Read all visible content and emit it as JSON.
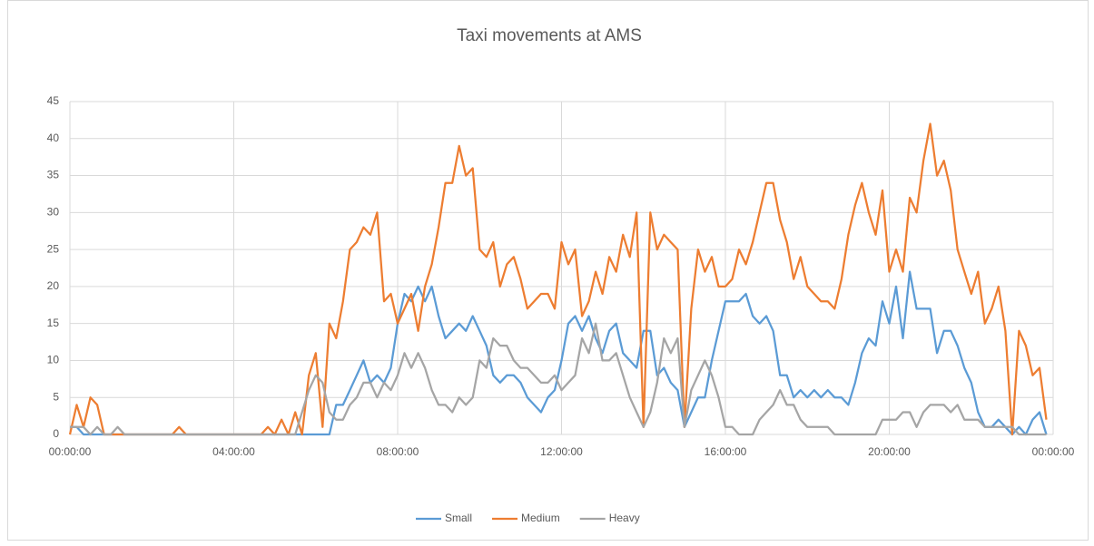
{
  "chart_data": {
    "type": "line",
    "title": "Taxi movements at AMS",
    "x": [
      0,
      10,
      20,
      30,
      40,
      50,
      60,
      70,
      80,
      90,
      100,
      110,
      120,
      130,
      140,
      150,
      160,
      170,
      180,
      190,
      200,
      210,
      220,
      230,
      240,
      250,
      260,
      270,
      280,
      290,
      300,
      310,
      320,
      330,
      340,
      350,
      360,
      370,
      380,
      390,
      400,
      410,
      420,
      430,
      440,
      450,
      460,
      470,
      480,
      490,
      500,
      510,
      520,
      530,
      540,
      550,
      560,
      570,
      580,
      590,
      600,
      610,
      620,
      630,
      640,
      650,
      660,
      670,
      680,
      690,
      700,
      710,
      720,
      730,
      740,
      750,
      760,
      770,
      780,
      790,
      800,
      810,
      820,
      830,
      840,
      850,
      860,
      870,
      880,
      890,
      900,
      910,
      920,
      930,
      940,
      950,
      960,
      970,
      980,
      990,
      1000,
      1010,
      1020,
      1030,
      1040,
      1050,
      1060,
      1070,
      1080,
      1090,
      1100,
      1110,
      1120,
      1130,
      1140,
      1150,
      1160,
      1170,
      1180,
      1190,
      1200,
      1210,
      1220,
      1230,
      1240,
      1250,
      1260,
      1270,
      1280,
      1290,
      1300,
      1310,
      1320,
      1330,
      1340,
      1350,
      1360,
      1370,
      1380,
      1390,
      1400,
      1410,
      1420,
      1430
    ],
    "series": [
      {
        "name": "Small",
        "color": "#5b9bd5",
        "values": [
          1,
          1,
          0,
          0,
          0,
          0,
          0,
          0,
          0,
          0,
          0,
          0,
          0,
          0,
          0,
          0,
          0,
          0,
          0,
          0,
          0,
          0,
          0,
          0,
          0,
          0,
          0,
          0,
          0,
          0,
          0,
          0,
          0,
          0,
          0,
          0,
          0,
          0,
          0,
          4,
          4,
          6,
          8,
          10,
          7,
          8,
          7,
          9,
          15,
          19,
          18,
          20,
          18,
          20,
          16,
          13,
          14,
          15,
          14,
          16,
          14,
          12,
          8,
          7,
          8,
          8,
          7,
          5,
          4,
          3,
          5,
          6,
          10,
          15,
          16,
          14,
          16,
          13,
          11,
          14,
          15,
          11,
          10,
          9,
          14,
          14,
          8,
          9,
          7,
          6,
          1,
          3,
          5,
          5,
          10,
          14,
          18,
          18,
          18,
          19,
          16,
          15,
          16,
          14,
          8,
          8,
          5,
          6,
          5,
          6,
          5,
          6,
          5,
          5,
          4,
          7,
          11,
          13,
          12,
          18,
          15,
          20,
          13,
          22,
          17,
          17,
          17,
          11,
          14,
          14,
          12,
          9,
          7,
          3,
          1,
          1,
          2,
          1,
          0,
          1,
          0,
          2,
          3,
          0
        ]
      },
      {
        "name": "Medium",
        "color": "#ed7d31",
        "values": [
          0,
          4,
          1,
          5,
          4,
          0,
          0,
          0,
          0,
          0,
          0,
          0,
          0,
          0,
          0,
          0,
          1,
          0,
          0,
          0,
          0,
          0,
          0,
          0,
          0,
          0,
          0,
          0,
          0,
          1,
          0,
          2,
          0,
          3,
          0,
          8,
          11,
          1,
          15,
          13,
          18,
          25,
          26,
          28,
          27,
          30,
          18,
          19,
          15,
          17,
          19,
          14,
          20,
          23,
          28,
          34,
          34,
          39,
          35,
          36,
          25,
          24,
          26,
          20,
          23,
          24,
          21,
          17,
          18,
          19,
          19,
          17,
          26,
          23,
          25,
          16,
          18,
          22,
          19,
          24,
          22,
          27,
          24,
          30,
          1,
          30,
          25,
          27,
          26,
          25,
          1,
          17,
          25,
          22,
          24,
          20,
          20,
          21,
          25,
          23,
          26,
          30,
          34,
          34,
          29,
          26,
          21,
          24,
          20,
          19,
          18,
          18,
          17,
          21,
          27,
          31,
          34,
          30,
          27,
          33,
          22,
          25,
          22,
          32,
          30,
          37,
          42,
          35,
          37,
          33,
          25,
          22,
          19,
          22,
          15,
          17,
          20,
          14,
          0,
          14,
          12,
          8,
          9,
          2
        ]
      },
      {
        "name": "Heavy",
        "color": "#a5a5a5",
        "values": [
          1,
          1,
          1,
          0,
          1,
          0,
          0,
          1,
          0,
          0,
          0,
          0,
          0,
          0,
          0,
          0,
          0,
          0,
          0,
          0,
          0,
          0,
          0,
          0,
          0,
          0,
          0,
          0,
          0,
          0,
          0,
          0,
          0,
          0,
          3,
          6,
          8,
          7,
          3,
          2,
          2,
          4,
          5,
          7,
          7,
          5,
          7,
          6,
          8,
          11,
          9,
          11,
          9,
          6,
          4,
          4,
          3,
          5,
          4,
          5,
          10,
          9,
          13,
          12,
          12,
          10,
          9,
          9,
          8,
          7,
          7,
          8,
          6,
          7,
          8,
          13,
          11,
          15,
          10,
          10,
          11,
          8,
          5,
          3,
          1,
          3,
          7,
          13,
          11,
          13,
          1,
          6,
          8,
          10,
          8,
          5,
          1,
          1,
          0,
          0,
          0,
          2,
          3,
          4,
          6,
          4,
          4,
          2,
          1,
          1,
          1,
          1,
          0,
          0,
          0,
          0,
          0,
          0,
          0,
          2,
          2,
          2,
          3,
          3,
          1,
          3,
          4,
          4,
          4,
          3,
          4,
          2,
          2,
          2,
          1,
          1,
          1,
          1,
          1,
          0,
          0,
          0,
          0,
          0
        ]
      }
    ],
    "xlim": [
      0,
      1440
    ],
    "xticks": [
      {
        "value": 0,
        "label": "00:00:00"
      },
      {
        "value": 240,
        "label": "04:00:00"
      },
      {
        "value": 480,
        "label": "08:00:00"
      },
      {
        "value": 720,
        "label": "12:00:00"
      },
      {
        "value": 960,
        "label": "16:00:00"
      },
      {
        "value": 1200,
        "label": "20:00:00"
      },
      {
        "value": 1440,
        "label": "00:00:00"
      }
    ],
    "ylim": [
      0,
      45
    ],
    "yticks": [
      0,
      5,
      10,
      15,
      20,
      25,
      30,
      35,
      40,
      45
    ],
    "grid": true,
    "legend": "bottom"
  }
}
